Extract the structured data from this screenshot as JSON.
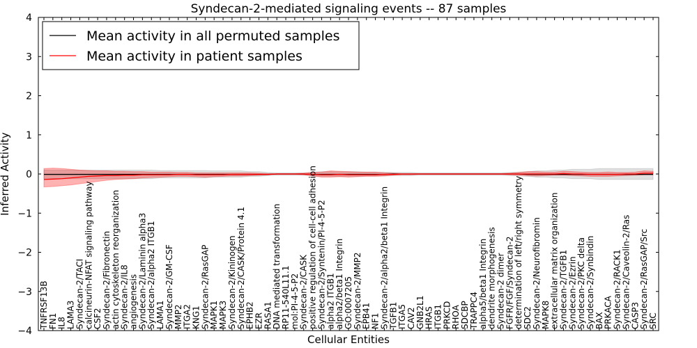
{
  "chart_data": {
    "type": "line",
    "title": "Syndecan-2-mediated signaling events -- 87 samples",
    "xlabel": "Cellular Entities",
    "ylabel": "Inferred Activity",
    "ylim": [
      -4,
      4
    ],
    "yticks": [
      4,
      3,
      2,
      1,
      0,
      -1,
      -2,
      -3,
      -4
    ],
    "ytick_labels": [
      "4",
      "3",
      "2",
      "1",
      "0",
      "−1",
      "−2",
      "−3",
      "−4"
    ],
    "legend_position": "top-left",
    "categories": [
      "TNFRSF13B",
      "FN1",
      "IL8",
      "LAMA3",
      "Syndecan-2/TACI",
      "calcineurin-NFAT signaling pathway",
      "CSF2",
      "Syndecan-2/Fibronectin",
      "actin cytoskeleton reorganization",
      "Syndecan-2/IL8",
      "angiogenesis",
      "Syndecan-2/Laminin alpha3",
      "Syndecan-2/alpha2 ITGB1",
      "LAMA1",
      "Syndecan-2/GM-CSF",
      "MMP2",
      "ITGA2",
      "KNG1",
      "Syndecan-2/RasGAP",
      "MAPK1",
      "MAPK3",
      "Syndecan-2/Kininogen",
      "Syndecan-2/CASK/Protein 4.1",
      "EPHB2",
      "EZR",
      "RASA1",
      "DNA mediated transformation",
      "RP11-540L11.1",
      "mol:PI-4-5-P2",
      "Syndecan-2/CASK",
      "positive regulation of cell-cell adhesion",
      "Syndecan-2/Syntenin/PI-4-5-P2",
      "alpha2 ITGB1",
      "alpha2/beta1 Integrin",
      "GO:0007205",
      "Syndecan-2/MMP2",
      "EPB41",
      "NF1",
      "Syndecan-2/alpha2/beta1 Integrin",
      "TGFB1",
      "ITGA5",
      "CAV2",
      "GNB2L1",
      "HRAS",
      "ITGB1",
      "PRKCD",
      "RHOA",
      "SDCBP",
      "TRAPPC4",
      "alpha5/beta1 Integrin",
      "dendrite morphogenesis",
      "Syndecan-2 dimer",
      "FGFR/FGF/Syndecan-2",
      "determination of left/right symmetry",
      "SDC2",
      "Syndecan-2/Neurofibromin",
      "MAPK8",
      "extracellular matrix organization",
      "Syndecan-2/TGFB1",
      "Syndecan-2/Ezrin",
      "Syndecan-2/PKC delta",
      "Syndecan-2/Synbindin",
      "BAX",
      "PRKACA",
      "Syndecan-2/RACK1",
      "Syndecan-2/Caveolin-2/Ras",
      "CASP3",
      "Syndecan-2/RasGAP/Src",
      "SRC"
    ],
    "series": [
      {
        "name": "Mean activity in all permuted samples",
        "color": "#000000",
        "values": [
          -0.01,
          -0.01,
          -0.01,
          -0.01,
          -0.01,
          -0.01,
          -0.01,
          -0.01,
          -0.01,
          -0.01,
          -0.01,
          -0.01,
          -0.01,
          -0.01,
          -0.01,
          -0.01,
          -0.01,
          -0.01,
          -0.01,
          -0.01,
          -0.01,
          -0.01,
          -0.01,
          -0.01,
          -0.01,
          -0.01,
          0,
          0,
          0,
          0,
          -0.01,
          -0.01,
          -0.01,
          -0.01,
          -0.01,
          -0.01,
          -0.01,
          -0.01,
          -0.01,
          0,
          0,
          0,
          0,
          0,
          0,
          0,
          0,
          0,
          0,
          0,
          0,
          0,
          0,
          0,
          -0.01,
          -0.01,
          -0.01,
          -0.01,
          -0.01,
          -0.01,
          -0.01,
          -0.01,
          -0.01,
          -0.01,
          -0.01,
          -0.01,
          -0.01,
          -0.01,
          -0.01
        ],
        "band": {
          "lower": [
            -0.12,
            -0.12,
            -0.12,
            -0.12,
            -0.12,
            -0.12,
            -0.12,
            -0.12,
            -0.12,
            -0.12,
            -0.12,
            -0.12,
            -0.12,
            -0.1,
            -0.1,
            -0.1,
            -0.1,
            -0.1,
            -0.1,
            -0.08,
            -0.08,
            -0.08,
            -0.08,
            -0.06,
            -0.06,
            -0.04,
            -0.03,
            -0.03,
            -0.03,
            -0.03,
            -0.05,
            -0.06,
            -0.06,
            -0.06,
            -0.06,
            -0.06,
            -0.05,
            -0.05,
            -0.05,
            -0.04,
            -0.04,
            -0.04,
            -0.03,
            -0.03,
            -0.03,
            -0.03,
            -0.03,
            -0.03,
            -0.03,
            -0.03,
            -0.03,
            -0.03,
            -0.04,
            -0.05,
            -0.06,
            -0.08,
            -0.08,
            -0.1,
            -0.1,
            -0.12,
            -0.12,
            -0.12,
            -0.14,
            -0.14,
            -0.14,
            -0.14,
            -0.14,
            -0.14,
            -0.14
          ],
          "upper": [
            0.1,
            0.1,
            0.1,
            0.1,
            0.1,
            0.1,
            0.1,
            0.1,
            0.1,
            0.1,
            0.1,
            0.1,
            0.1,
            0.09,
            0.09,
            0.09,
            0.09,
            0.09,
            0.09,
            0.08,
            0.08,
            0.08,
            0.08,
            0.06,
            0.06,
            0.04,
            0.03,
            0.03,
            0.03,
            0.03,
            0.05,
            0.06,
            0.06,
            0.06,
            0.06,
            0.06,
            0.05,
            0.05,
            0.05,
            0.04,
            0.04,
            0.04,
            0.03,
            0.03,
            0.03,
            0.03,
            0.03,
            0.03,
            0.03,
            0.03,
            0.03,
            0.03,
            0.04,
            0.05,
            0.06,
            0.08,
            0.08,
            0.1,
            0.1,
            0.12,
            0.12,
            0.12,
            0.14,
            0.14,
            0.14,
            0.14,
            0.14,
            0.14,
            0.14
          ],
          "color": "#000000",
          "opacity": 0.12
        }
      },
      {
        "name": "Mean activity in patient samples",
        "color": "#ff0000",
        "values": [
          -0.14,
          -0.13,
          -0.12,
          -0.1,
          -0.08,
          -0.06,
          -0.05,
          -0.04,
          -0.04,
          -0.03,
          -0.03,
          -0.02,
          -0.02,
          -0.02,
          -0.02,
          -0.01,
          -0.01,
          -0.02,
          -0.02,
          -0.02,
          -0.02,
          -0.01,
          -0.01,
          -0.01,
          -0.01,
          -0.01,
          0,
          0,
          0,
          0,
          -0.01,
          -0.02,
          -0.02,
          -0.01,
          -0.02,
          -0.02,
          -0.02,
          -0.02,
          -0.01,
          -0.01,
          0,
          0,
          0,
          0,
          0,
          0,
          0,
          0,
          0,
          0,
          0,
          0,
          0,
          0,
          0,
          0,
          0,
          0,
          0.01,
          0,
          0,
          -0.01,
          -0.01,
          -0.01,
          -0.01,
          0,
          0,
          0.02,
          0.02
        ],
        "band": {
          "lower": [
            -0.33,
            -0.32,
            -0.3,
            -0.28,
            -0.25,
            -0.22,
            -0.19,
            -0.16,
            -0.14,
            -0.13,
            -0.12,
            -0.1,
            -0.09,
            -0.08,
            -0.07,
            -0.06,
            -0.06,
            -0.07,
            -0.08,
            -0.07,
            -0.06,
            -0.05,
            -0.05,
            -0.04,
            -0.03,
            -0.02,
            -0.01,
            -0.01,
            -0.01,
            -0.02,
            -0.05,
            -0.08,
            -0.08,
            -0.07,
            -0.08,
            -0.07,
            -0.06,
            -0.06,
            -0.05,
            -0.03,
            -0.02,
            -0.02,
            -0.01,
            -0.01,
            -0.01,
            -0.01,
            -0.01,
            -0.01,
            -0.01,
            -0.01,
            -0.01,
            -0.01,
            -0.02,
            -0.03,
            -0.04,
            -0.05,
            -0.04,
            -0.03,
            -0.03,
            -0.04,
            -0.05,
            -0.06,
            -0.06,
            -0.06,
            -0.05,
            -0.04,
            -0.03,
            -0.02,
            -0.02
          ],
          "upper": [
            0.14,
            0.15,
            0.14,
            0.12,
            0.1,
            0.09,
            0.08,
            0.08,
            0.07,
            0.07,
            0.06,
            0.06,
            0.05,
            0.05,
            0.05,
            0.04,
            0.04,
            0.03,
            0.03,
            0.03,
            0.03,
            0.03,
            0.03,
            0.03,
            0.02,
            0.01,
            0.01,
            0.01,
            0.01,
            0.02,
            0.04,
            0.05,
            0.08,
            0.07,
            0.06,
            0.05,
            0.05,
            0.05,
            0.03,
            0.02,
            0.01,
            0.01,
            0.01,
            0.01,
            0.01,
            0.01,
            0.01,
            0.01,
            0.01,
            0.01,
            0.01,
            0.01,
            0.02,
            0.04,
            0.06,
            0.06,
            0.05,
            0.05,
            0.07,
            0.06,
            0.05,
            0.04,
            0.04,
            0.05,
            0.04,
            0.04,
            0.05,
            0.08,
            0.07
          ],
          "color": "#ff0000",
          "opacity": 0.3
        }
      }
    ]
  }
}
